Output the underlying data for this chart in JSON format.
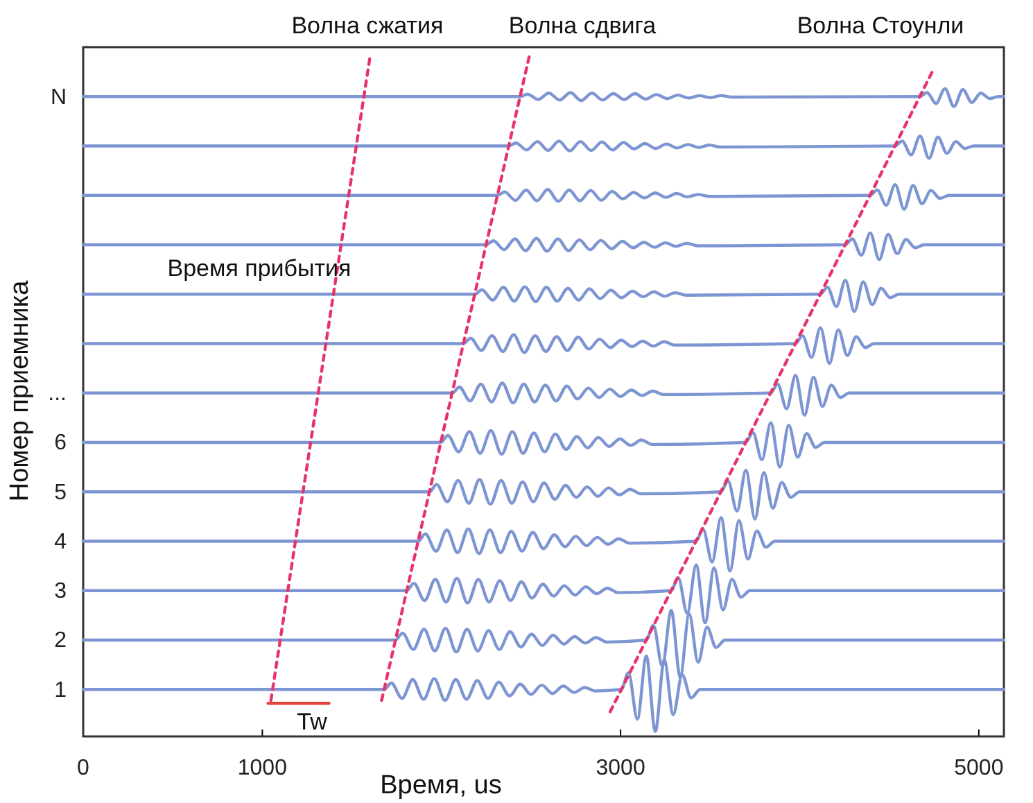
{
  "chart_data": {
    "type": "line",
    "xlabel": "Время, us",
    "ylabel": "Номер приемника",
    "xlim": [
      0,
      5140
    ],
    "xticks": [
      0,
      1000,
      3000,
      5000
    ],
    "ylim": [
      0.05,
      14
    ],
    "yticks": [
      1,
      2,
      3,
      4,
      5,
      6,
      {
        "value": 7,
        "label": "..."
      },
      {
        "value": 13,
        "label": "N"
      }
    ],
    "grid": false,
    "line_style": "solid",
    "annotations": [
      "Волна сжатия",
      "Волна сдвига",
      "Волна Стоунли",
      "Время прибытия",
      "Tw"
    ],
    "series": [
      {
        "color": "#7d95d2",
        "x": [
          0,
          1680,
          1720,
          1780,
          1840,
          1900,
          1960,
          2020,
          2080,
          2140,
          2200,
          2260,
          2320,
          2380,
          2440,
          2500,
          2560,
          2620,
          2680,
          2740,
          2800,
          2860,
          3004,
          3044,
          3094,
          3144,
          3194,
          3244,
          3294,
          3344,
          3394,
          3444,
          5140
        ],
        "values": [
          1,
          1,
          1.13,
          0.82,
          1.2,
          0.8,
          1.22,
          0.78,
          1.2,
          0.8,
          1.18,
          0.82,
          1.15,
          0.87,
          1.11,
          0.9,
          1.09,
          0.92,
          1.07,
          0.94,
          1.04,
          0.97,
          1,
          1.34,
          0.4,
          1.68,
          0.15,
          1.6,
          0.49,
          1.3,
          0.83,
          1,
          1
        ]
      },
      {
        "color": "#7d95d2",
        "x": [
          0,
          1743,
          1783,
          1843,
          1903,
          1963,
          2023,
          2083,
          2143,
          2203,
          2263,
          2323,
          2383,
          2443,
          2503,
          2563,
          2623,
          2683,
          2743,
          2803,
          2863,
          2923,
          3143,
          3183,
          3233,
          3283,
          3333,
          3383,
          3433,
          3483,
          3533,
          3583,
          5140
        ],
        "values": [
          2,
          2,
          2.14,
          1.81,
          2.22,
          1.78,
          2.24,
          1.76,
          2.22,
          1.78,
          2.19,
          1.81,
          2.17,
          1.86,
          2.12,
          1.89,
          2.1,
          1.92,
          2.07,
          1.94,
          2.05,
          1.96,
          2,
          2.3,
          1.47,
          2.6,
          1.25,
          2.53,
          1.55,
          2.26,
          1.85,
          2,
          2
        ]
      },
      {
        "color": "#7d95d2",
        "x": [
          0,
          1806,
          1846,
          1906,
          1966,
          2026,
          2086,
          2146,
          2206,
          2266,
          2326,
          2386,
          2446,
          2506,
          2566,
          2626,
          2686,
          2746,
          2806,
          2866,
          2926,
          2986,
          3282,
          3322,
          3372,
          3422,
          3472,
          3522,
          3572,
          3622,
          3672,
          3722,
          5140
        ],
        "values": [
          3,
          3,
          3.15,
          2.8,
          3.23,
          2.77,
          3.25,
          2.75,
          3.23,
          2.77,
          3.2,
          2.8,
          3.18,
          2.85,
          3.13,
          2.89,
          3.1,
          2.91,
          3.08,
          2.94,
          3.05,
          2.96,
          3,
          3.26,
          2.54,
          3.52,
          2.35,
          3.46,
          2.61,
          3.23,
          2.87,
          3,
          3
        ]
      },
      {
        "color": "#7d95d2",
        "x": [
          0,
          1870,
          1910,
          1970,
          2030,
          2090,
          2150,
          2210,
          2270,
          2330,
          2390,
          2450,
          2510,
          2570,
          2630,
          2690,
          2750,
          2810,
          2870,
          2930,
          2990,
          3050,
          3421,
          3461,
          3511,
          3561,
          3611,
          3661,
          3711,
          3761,
          3811,
          3861,
          5140
        ],
        "values": [
          4,
          4,
          4.15,
          3.8,
          4.23,
          3.77,
          4.25,
          3.75,
          4.23,
          3.77,
          4.2,
          3.8,
          4.18,
          3.85,
          4.13,
          3.89,
          4.1,
          3.91,
          4.08,
          3.94,
          4.05,
          3.96,
          4,
          4.24,
          3.58,
          4.48,
          3.4,
          4.42,
          3.64,
          4.21,
          3.88,
          4,
          4
        ]
      },
      {
        "color": "#7d95d2",
        "x": [
          0,
          1933,
          1973,
          2033,
          2093,
          2153,
          2213,
          2273,
          2333,
          2393,
          2453,
          2513,
          2573,
          2633,
          2693,
          2753,
          2813,
          2873,
          2933,
          2993,
          3053,
          3113,
          3560,
          3600,
          3650,
          3700,
          3750,
          3800,
          3850,
          3900,
          3950,
          4000,
          5140
        ],
        "values": [
          5,
          5,
          5.15,
          4.8,
          5.23,
          4.77,
          5.25,
          4.75,
          5.23,
          4.77,
          5.2,
          4.8,
          5.18,
          4.85,
          5.13,
          4.89,
          5.1,
          4.91,
          5.08,
          4.94,
          5.05,
          4.96,
          5,
          5.22,
          4.61,
          5.44,
          4.45,
          5.39,
          4.67,
          5.19,
          4.89,
          5,
          5
        ]
      },
      {
        "color": "#7d95d2",
        "x": [
          0,
          1996,
          2036,
          2096,
          2156,
          2216,
          2276,
          2336,
          2396,
          2456,
          2516,
          2576,
          2636,
          2696,
          2756,
          2816,
          2876,
          2936,
          2996,
          3056,
          3116,
          3176,
          3699,
          3739,
          3789,
          3839,
          3889,
          3939,
          3989,
          4039,
          4089,
          4139,
          5140
        ],
        "values": [
          6,
          6,
          6.14,
          5.81,
          6.22,
          5.78,
          6.24,
          5.76,
          6.22,
          5.78,
          6.19,
          5.81,
          6.17,
          5.86,
          6.12,
          5.89,
          6.1,
          5.92,
          6.07,
          5.94,
          6.05,
          5.96,
          6,
          6.2,
          5.65,
          6.4,
          5.5,
          6.35,
          5.7,
          6.18,
          5.9,
          6,
          6
        ]
      },
      {
        "color": "#7d95d2",
        "x": [
          0,
          2060,
          2100,
          2160,
          2220,
          2280,
          2340,
          2400,
          2460,
          2520,
          2580,
          2640,
          2700,
          2760,
          2820,
          2880,
          2940,
          3000,
          3060,
          3120,
          3180,
          3240,
          3837,
          3877,
          3927,
          3977,
          4027,
          4077,
          4127,
          4177,
          4227,
          4277,
          5140
        ],
        "values": [
          7,
          7,
          7.12,
          6.84,
          7.18,
          6.82,
          7.2,
          6.8,
          7.18,
          6.82,
          7.16,
          6.84,
          7.14,
          6.88,
          7.1,
          6.91,
          7.08,
          6.93,
          7.06,
          6.95,
          7.04,
          6.97,
          7,
          7.18,
          6.68,
          7.36,
          6.55,
          7.32,
          6.73,
          7.16,
          6.91,
          7,
          7
        ]
      },
      {
        "color": "#7d95d2",
        "x": [
          0,
          2123,
          2163,
          2223,
          2283,
          2343,
          2403,
          2463,
          2523,
          2583,
          2643,
          2703,
          2763,
          2823,
          2883,
          2943,
          3003,
          3063,
          3123,
          3183,
          3243,
          3303,
          3976,
          4016,
          4066,
          4116,
          4166,
          4216,
          4266,
          4316,
          4366,
          4416,
          5140
        ],
        "values": [
          8,
          8,
          8.11,
          7.86,
          8.16,
          7.84,
          8.18,
          7.82,
          8.16,
          7.84,
          8.14,
          7.86,
          8.13,
          7.89,
          8.09,
          7.92,
          8.07,
          7.94,
          8.05,
          7.95,
          8.04,
          7.97,
          8,
          8.16,
          7.72,
          8.32,
          7.6,
          8.28,
          7.76,
          8.14,
          7.92,
          8,
          8
        ]
      },
      {
        "color": "#7d95d2",
        "x": [
          0,
          2186,
          2226,
          2286,
          2346,
          2406,
          2466,
          2526,
          2586,
          2646,
          2706,
          2766,
          2826,
          2886,
          2946,
          3006,
          3066,
          3126,
          3186,
          3246,
          3306,
          3366,
          4115,
          4155,
          4205,
          4255,
          4305,
          4355,
          4405,
          4455,
          4505,
          4555,
          5140
        ],
        "values": [
          9,
          9,
          9.09,
          8.88,
          9.14,
          8.86,
          9.15,
          8.85,
          9.14,
          8.86,
          9.12,
          8.88,
          9.11,
          8.91,
          9.08,
          8.93,
          9.06,
          8.95,
          9.05,
          8.96,
          9.03,
          8.98,
          9,
          9.14,
          8.75,
          9.28,
          8.65,
          9.25,
          8.79,
          9.12,
          8.93,
          9,
          9
        ]
      },
      {
        "color": "#7d95d2",
        "x": [
          0,
          2250,
          2290,
          2350,
          2410,
          2470,
          2530,
          2590,
          2650,
          2710,
          2770,
          2830,
          2890,
          2950,
          3010,
          3070,
          3130,
          3190,
          3250,
          3310,
          3370,
          3430,
          4254,
          4294,
          4344,
          4394,
          4444,
          4494,
          4544,
          4594,
          4644,
          4694,
          5140
        ],
        "values": [
          10,
          10,
          10.08,
          9.9,
          10.12,
          9.88,
          10.13,
          9.87,
          10.12,
          9.88,
          10.1,
          9.9,
          10.09,
          9.92,
          10.07,
          9.94,
          10.05,
          9.95,
          10.04,
          9.97,
          10.03,
          9.98,
          10,
          10.12,
          9.79,
          10.24,
          9.7,
          10.21,
          9.82,
          10.11,
          9.94,
          10,
          10
        ]
      },
      {
        "color": "#7d95d2",
        "x": [
          0,
          2313,
          2353,
          2413,
          2473,
          2533,
          2593,
          2653,
          2713,
          2773,
          2833,
          2893,
          2953,
          3013,
          3073,
          3133,
          3193,
          3253,
          3313,
          3373,
          3433,
          3493,
          4393,
          4433,
          4483,
          4533,
          4583,
          4633,
          4683,
          4733,
          4783,
          4833,
          5140
        ],
        "values": [
          11,
          11,
          11.07,
          10.9,
          11.11,
          10.89,
          11.12,
          10.88,
          11.11,
          10.89,
          11.1,
          10.9,
          11.08,
          10.93,
          11.06,
          10.95,
          11.05,
          10.96,
          11.04,
          10.97,
          11.02,
          10.98,
          11,
          11.11,
          10.8,
          11.22,
          10.72,
          11.2,
          10.83,
          11.1,
          10.94,
          11,
          11
        ]
      },
      {
        "color": "#7d95d2",
        "x": [
          0,
          2376,
          2416,
          2476,
          2536,
          2596,
          2656,
          2716,
          2776,
          2836,
          2896,
          2956,
          3016,
          3076,
          3136,
          3196,
          3256,
          3316,
          3376,
          3436,
          3496,
          3556,
          4532,
          4572,
          4622,
          4672,
          4722,
          4772,
          4822,
          4872,
          4922,
          4972,
          5140
        ],
        "values": [
          12,
          12,
          12.06,
          11.92,
          12.09,
          11.91,
          12.1,
          11.9,
          12.09,
          11.91,
          12.08,
          11.92,
          12.07,
          11.94,
          12.05,
          11.95,
          12.04,
          11.96,
          12.03,
          11.97,
          12.02,
          11.98,
          12,
          12.1,
          11.82,
          12.2,
          11.75,
          12.18,
          11.85,
          12.09,
          11.95,
          12,
          12
        ]
      },
      {
        "color": "#7d95d2",
        "x": [
          0,
          2440,
          2480,
          2540,
          2600,
          2660,
          2720,
          2780,
          2840,
          2900,
          2960,
          3020,
          3080,
          3140,
          3200,
          3260,
          3320,
          3380,
          3440,
          3500,
          3560,
          3620,
          4671,
          4711,
          4761,
          4811,
          4861,
          4911,
          4961,
          5011,
          5061,
          5111,
          5140
        ],
        "values": [
          13,
          13,
          13.05,
          12.94,
          13.07,
          12.93,
          13.08,
          12.92,
          13.07,
          12.93,
          13.06,
          12.94,
          13.06,
          12.95,
          13.04,
          12.96,
          13.03,
          12.97,
          13.02,
          12.98,
          13.02,
          12.99,
          13,
          13.08,
          12.86,
          13.16,
          12.8,
          13.14,
          12.88,
          13.07,
          12.96,
          13,
          13
        ]
      },
      {
        "color": "#e8336a",
        "line_style": "dashed",
        "x": [
          1048,
          1604
        ],
        "values": [
          0.78,
          13.87
        ]
      },
      {
        "color": "#e8336a",
        "line_style": "dashed",
        "x": [
          1666,
          2494
        ],
        "values": [
          0.78,
          13.87
        ]
      },
      {
        "color": "#e8336a",
        "line_style": "dashed",
        "x": [
          2942,
          4744
        ],
        "values": [
          0.55,
          13.53
        ]
      },
      {
        "color": "#e8433a",
        "line_style": "solid",
        "x": [
          1032,
          1372
        ],
        "values": [
          0.72,
          0.72
        ]
      }
    ]
  }
}
